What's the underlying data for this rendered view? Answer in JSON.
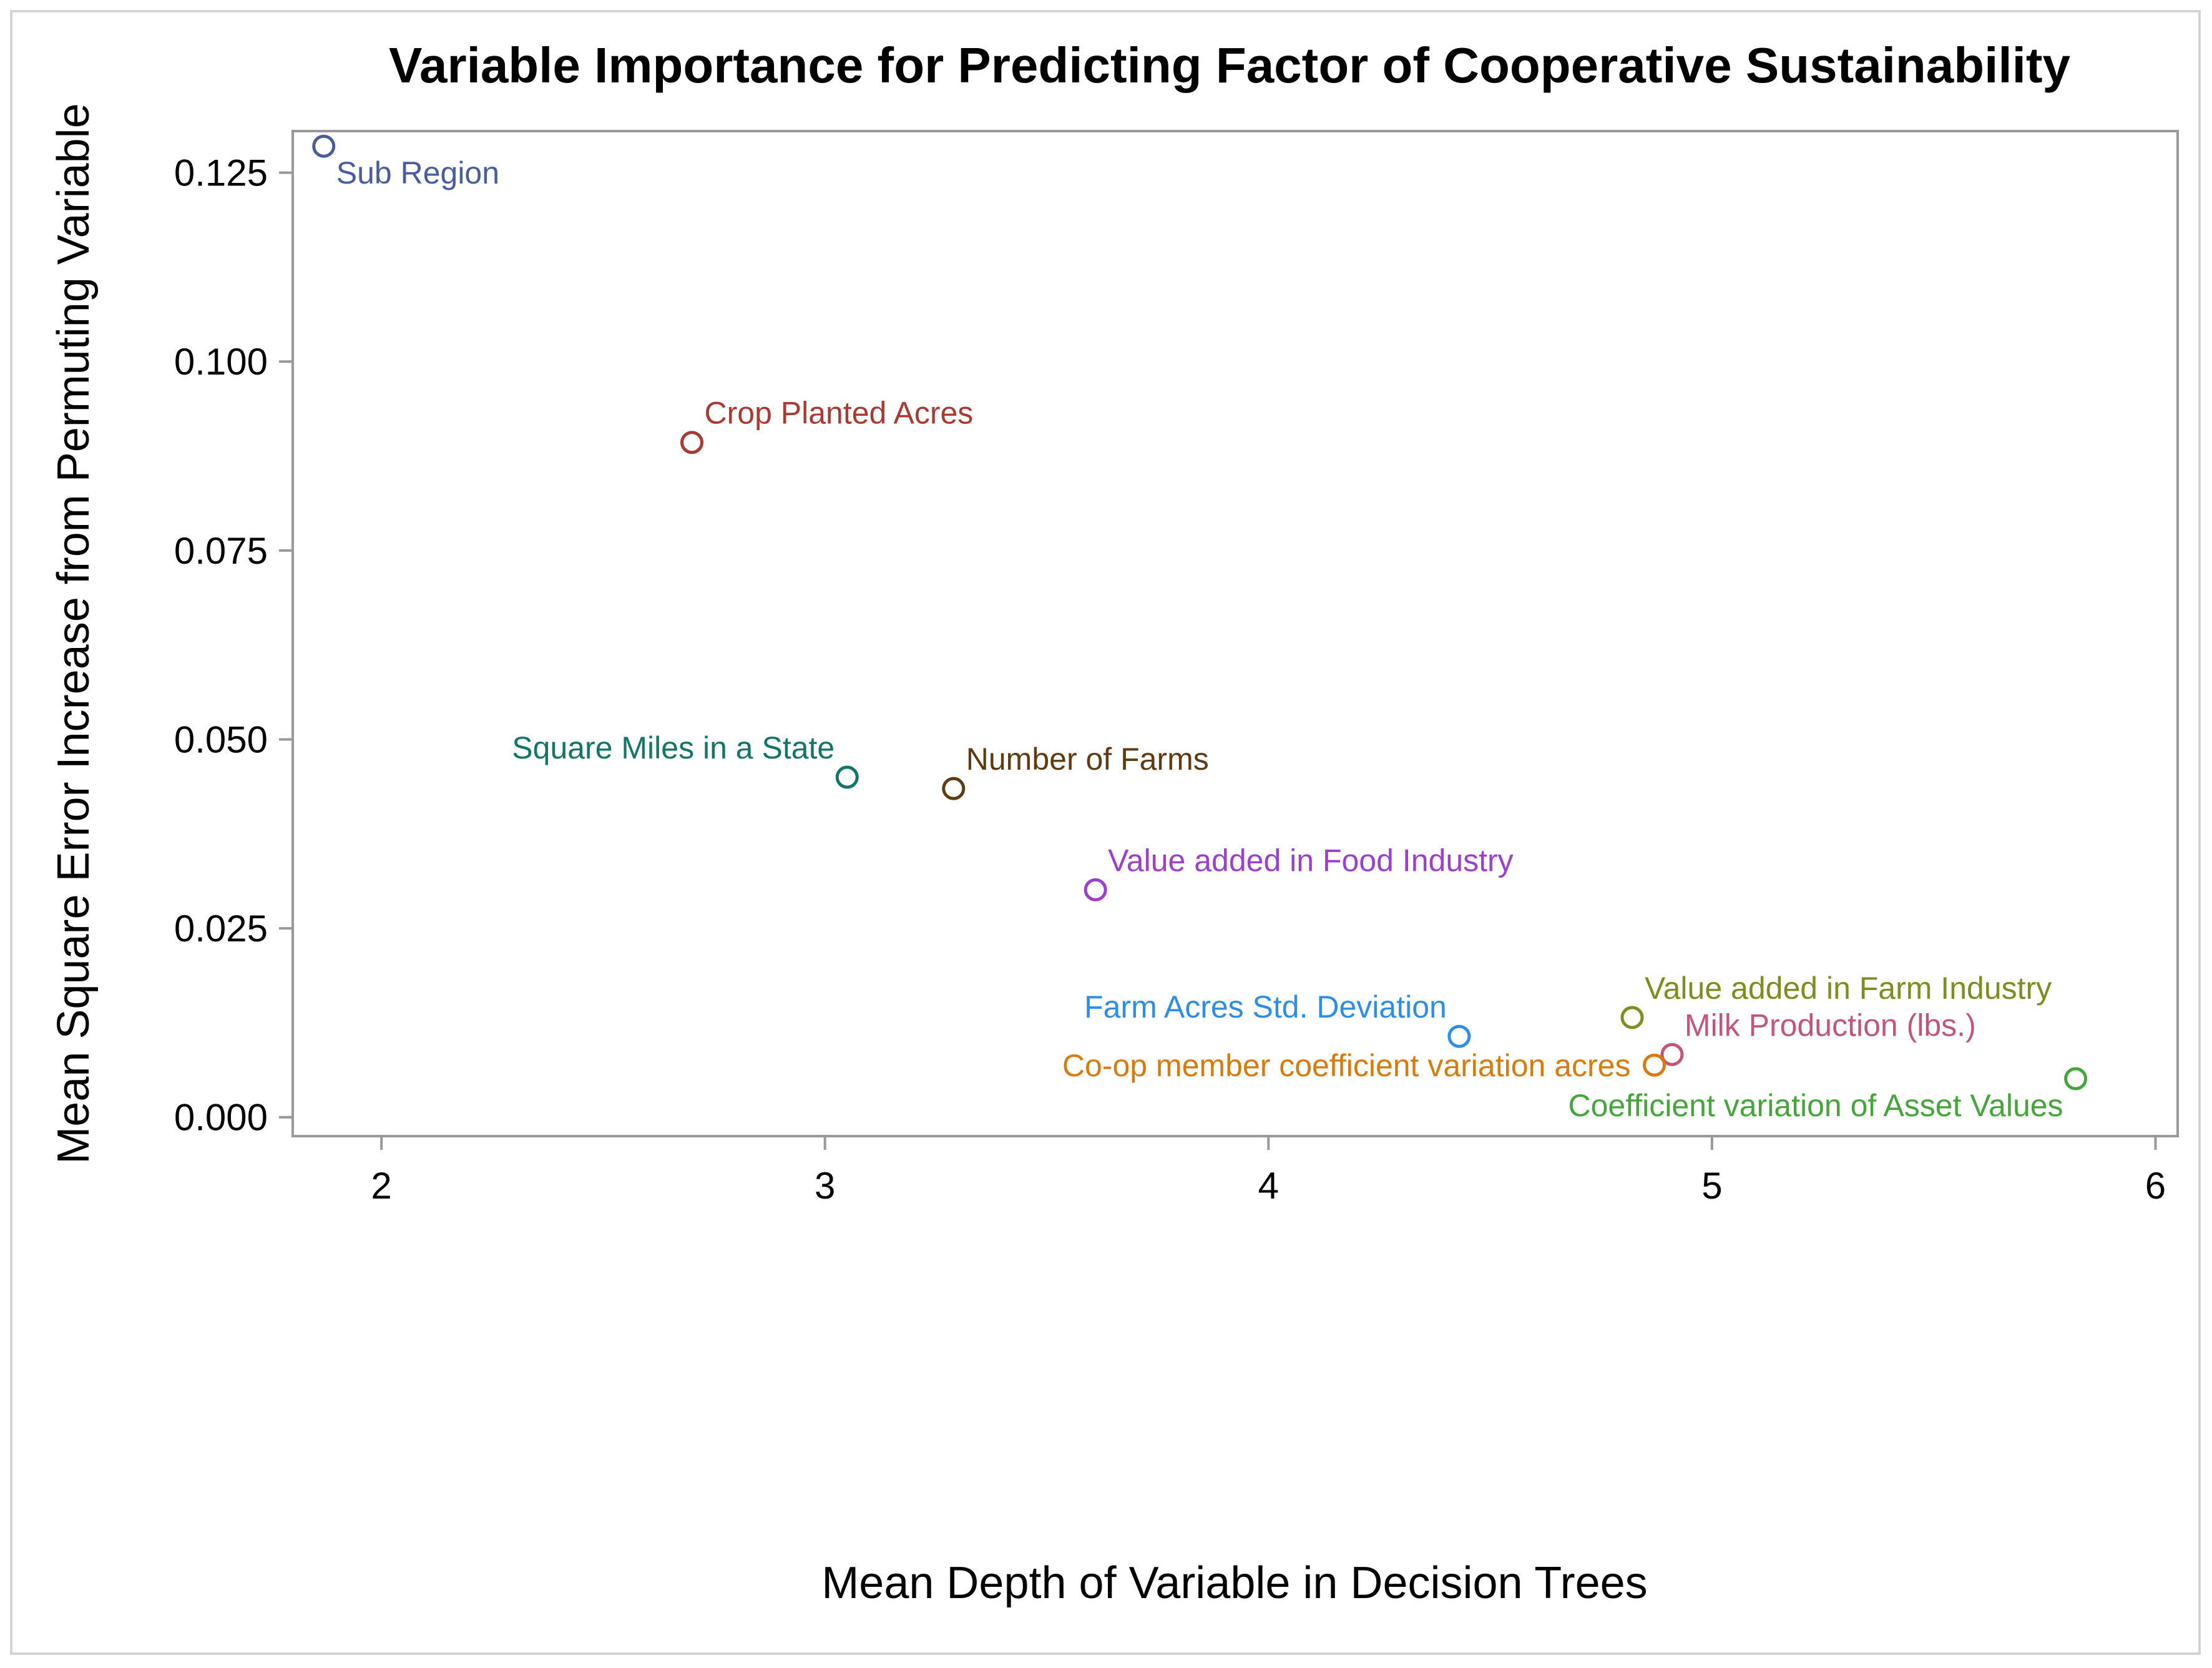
{
  "chart_data": {
    "type": "scatter",
    "title": "Variable Importance for Predicting Factor of Cooperative Sustainability",
    "xlabel": "Mean Depth of Variable in Decision Trees",
    "ylabel": "Mean Square Error Increase from Permuting Variable",
    "xlim": [
      1.8,
      6.05
    ],
    "ylim": [
      -0.0025,
      0.1305
    ],
    "xticks": [
      2,
      3,
      4,
      5,
      6
    ],
    "xtick_labels": [
      "2",
      "3",
      "4",
      "5",
      "6"
    ],
    "yticks": [
      0.0,
      0.025,
      0.05,
      0.075,
      0.1,
      0.125
    ],
    "ytick_labels": [
      "0.000",
      "0.025",
      "0.050",
      "0.075",
      "0.100",
      "0.125"
    ],
    "grid": false,
    "legend": "none",
    "points": [
      {
        "label": "Sub Region",
        "x": 1.87,
        "y": 0.1285,
        "color": "#4b5c9c",
        "label_pos": "below-right"
      },
      {
        "label": "Crop Planted Acres",
        "x": 2.7,
        "y": 0.0893,
        "color": "#a83a32",
        "label_pos": "above-right"
      },
      {
        "label": "Square Miles in a State",
        "x": 3.05,
        "y": 0.045,
        "color": "#127566",
        "label_pos": "above-left"
      },
      {
        "label": "Number of Farms",
        "x": 3.29,
        "y": 0.0435,
        "color": "#5e3b12",
        "label_pos": "above-right"
      },
      {
        "label": "Value added in Food Industry",
        "x": 3.61,
        "y": 0.0301,
        "color": "#9b3fcf",
        "label_pos": "above-right"
      },
      {
        "label": "Farm Acres Std. Deviation",
        "x": 4.43,
        "y": 0.0107,
        "color": "#2e8ee6",
        "label_pos": "above-left"
      },
      {
        "label": "Value added in Farm Industry",
        "x": 4.82,
        "y": 0.0132,
        "color": "#7f8c1f",
        "label_pos": "above-right"
      },
      {
        "label": "Milk Production (lbs.)",
        "x": 4.91,
        "y": 0.0083,
        "color": "#c0557e",
        "label_pos": "above-right"
      },
      {
        "label": "Co-op member coefficient variation acres",
        "x": 4.87,
        "y": 0.0069,
        "color": "#d97a0d",
        "label_pos": "left"
      },
      {
        "label": "Coefficient variation of Asset Values",
        "x": 5.82,
        "y": 0.0051,
        "color": "#44a63a",
        "label_pos": "below-left"
      }
    ]
  }
}
